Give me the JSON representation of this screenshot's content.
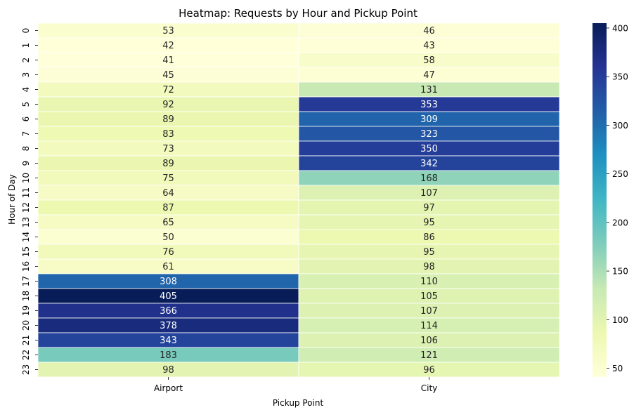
{
  "chart_data": {
    "type": "heatmap",
    "title": "Heatmap: Requests by Hour and Pickup Point",
    "xlabel": "Pickup Point",
    "ylabel": "Hour of Day",
    "columns": [
      "Airport",
      "City"
    ],
    "rows": [
      "0",
      "1",
      "2",
      "3",
      "4",
      "5",
      "6",
      "7",
      "8",
      "9",
      "10",
      "11",
      "12",
      "13",
      "14",
      "15",
      "16",
      "17",
      "18",
      "19",
      "20",
      "21",
      "22",
      "23"
    ],
    "values": [
      [
        53,
        46
      ],
      [
        42,
        43
      ],
      [
        41,
        58
      ],
      [
        45,
        47
      ],
      [
        72,
        131
      ],
      [
        92,
        353
      ],
      [
        89,
        309
      ],
      [
        83,
        323
      ],
      [
        73,
        350
      ],
      [
        89,
        342
      ],
      [
        75,
        168
      ],
      [
        64,
        107
      ],
      [
        87,
        97
      ],
      [
        65,
        95
      ],
      [
        50,
        86
      ],
      [
        76,
        95
      ],
      [
        61,
        98
      ],
      [
        308,
        110
      ],
      [
        405,
        105
      ],
      [
        366,
        107
      ],
      [
        378,
        114
      ],
      [
        343,
        106
      ],
      [
        183,
        121
      ],
      [
        98,
        96
      ]
    ],
    "colorbar": {
      "range": [
        41,
        405
      ],
      "ticks": [
        50,
        100,
        150,
        200,
        250,
        300,
        350,
        400
      ]
    },
    "colormap": "YlGnBu",
    "colormap_stops": [
      "#ffffd9",
      "#edf8b1",
      "#c7e9b4",
      "#7fcdbb",
      "#41b6c4",
      "#1d91c0",
      "#225ea8",
      "#253494",
      "#081d58"
    ],
    "grid": false,
    "legend": "colorbar-right"
  }
}
